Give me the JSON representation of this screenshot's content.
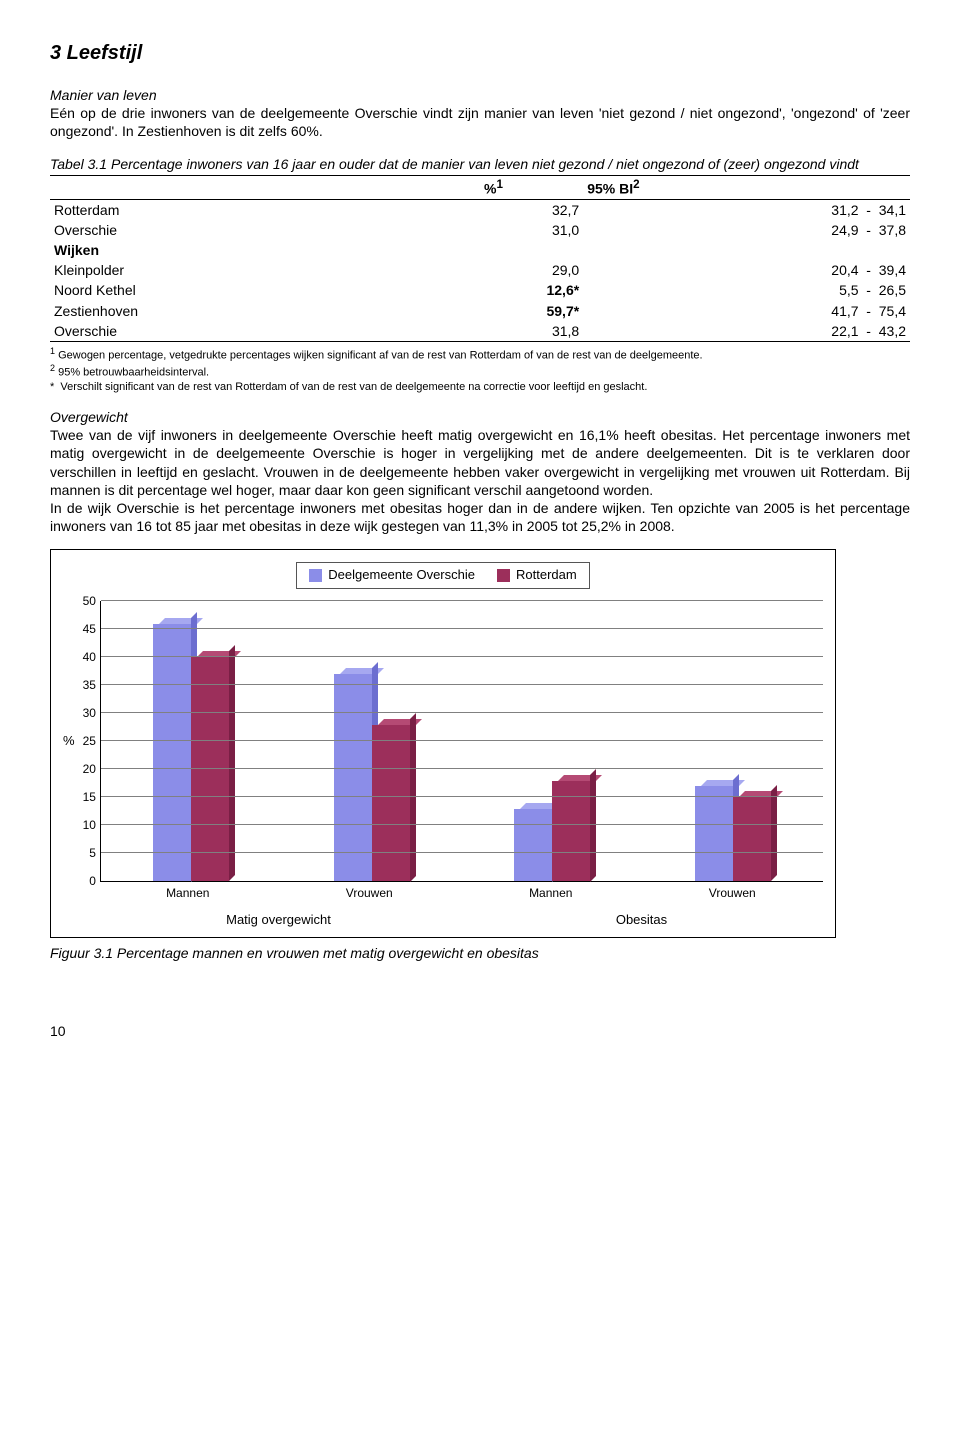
{
  "heading": "3 Leefstijl",
  "section1": {
    "title": "Manier van leven",
    "body": "Eén op de drie inwoners van de deelgemeente Overschie vindt zijn manier van leven 'niet gezond / niet ongezond', 'ongezond' of 'zeer ongezond'. In Zestienhoven is dit zelfs 60%."
  },
  "table": {
    "caption": "Tabel 3.1 Percentage inwoners van 16 jaar en ouder dat de manier van leven niet gezond / niet ongezond of (zeer) ongezond vindt",
    "col_pct": "%",
    "col_pct_sup": "1",
    "col_ci": "95% BI",
    "col_ci_sup": "2",
    "rows": [
      {
        "label": "Rotterdam",
        "pct": "32,7",
        "lo": "31,2",
        "hi": "34,1",
        "bold": false
      },
      {
        "label": "Overschie",
        "pct": "31,0",
        "lo": "24,9",
        "hi": "37,8",
        "bold": false
      }
    ],
    "wijken_label": "Wijken",
    "wijken": [
      {
        "label": "Kleinpolder",
        "pct": "29,0",
        "lo": "20,4",
        "hi": "39,4",
        "bold": false
      },
      {
        "label": "Noord Kethel",
        "pct": "12,6*",
        "lo": "5,5",
        "hi": "26,5",
        "bold": true
      },
      {
        "label": "Zestienhoven",
        "pct": "59,7*",
        "lo": "41,7",
        "hi": "75,4",
        "bold": true
      },
      {
        "label": "Overschie",
        "pct": "31,8",
        "lo": "22,1",
        "hi": "43,2",
        "bold": false
      }
    ]
  },
  "footnotes": {
    "f1": "Gewogen percentage, vetgedrukte percentages wijken significant af van de rest van Rotterdam of van de rest van de deelgemeente.",
    "f2": "95% betrouwbaarheidsinterval.",
    "fstar": "Verschilt significant van de rest van Rotterdam of van de rest van de deelgemeente na correctie voor leeftijd en geslacht."
  },
  "section2": {
    "title": "Overgewicht",
    "body": "Twee van de vijf inwoners in deelgemeente Overschie heeft matig overgewicht en 16,1% heeft obesitas. Het percentage inwoners met matig overgewicht in de deelgemeente Overschie is hoger in vergelijking met de andere deelgemeenten. Dit is te verklaren door verschillen in leeftijd en geslacht. Vrouwen in de deelgemeente hebben vaker overgewicht in vergelijking met vrouwen uit Rotterdam. Bij mannen is dit percentage wel hoger, maar daar kon geen significant verschil aangetoond worden.\nIn de wijk Overschie is het percentage inwoners met obesitas hoger dan in de andere wijken. Ten opzichte van 2005 is het percentage inwoners van 16 tot 85 jaar met obesitas in deze wijk gestegen van 11,3% in 2005 tot 25,2% in 2008."
  },
  "chart": {
    "legend": [
      {
        "label": "Deelgemeente Overschie",
        "color": "#8b8de8",
        "shade_top": "#a6a8f0",
        "shade_side": "#6c6ed0"
      },
      {
        "label": "Rotterdam",
        "color": "#9c2f5b",
        "shade_top": "#b54a74",
        "shade_side": "#7a1f45"
      }
    ],
    "ymax": 50,
    "ystep": 5,
    "yaxis_label": "%",
    "groups": [
      {
        "label": "Mannen",
        "v1": 46,
        "v2": 40
      },
      {
        "label": "Vrouwen",
        "v1": 37,
        "v2": 28
      },
      {
        "label": "Mannen",
        "v1": 13,
        "v2": 18
      },
      {
        "label": "Vrouwen",
        "v1": 17,
        "v2": 15
      }
    ],
    "categories": [
      "Matig overgewicht",
      "Obesitas"
    ]
  },
  "figure_caption": "Figuur 3.1 Percentage mannen en vrouwen met matig overgewicht en obesitas",
  "page_number": "10"
}
